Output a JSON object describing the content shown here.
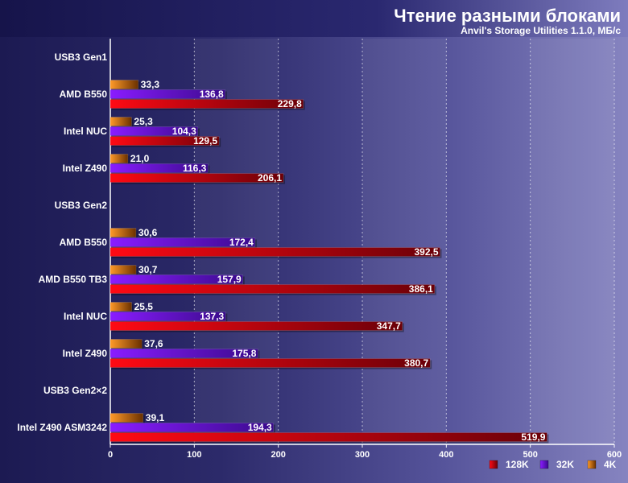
{
  "chart_data": {
    "type": "bar",
    "orientation": "horizontal",
    "title": "Чтение разными блоками",
    "subtitle": "Anvil's Storage Utilities 1.1.0, МБ/с",
    "xlim": [
      0,
      600
    ],
    "xticks": [
      "0",
      "100",
      "200",
      "300",
      "400",
      "500",
      "600"
    ],
    "grid": true,
    "legend_position": "bottom-right",
    "series": [
      {
        "name": "128K",
        "color": "#cc0010"
      },
      {
        "name": "32K",
        "color": "#6a10d8"
      },
      {
        "name": "4K",
        "color": "#d8761c"
      }
    ],
    "rows": [
      {
        "label": "USB3 Gen1",
        "group_header": true
      },
      {
        "label": "AMD B550",
        "values": [
          229.8,
          136.8,
          33.3
        ],
        "texts": [
          "229,8",
          "136,8",
          "33,3"
        ]
      },
      {
        "label": "Intel NUC",
        "values": [
          129.5,
          104.3,
          25.3
        ],
        "texts": [
          "129,5",
          "104,3",
          "25,3"
        ]
      },
      {
        "label": "Intel Z490",
        "values": [
          206.1,
          116.3,
          21.0
        ],
        "texts": [
          "206,1",
          "116,3",
          "21,0"
        ]
      },
      {
        "label": "USB3 Gen2",
        "group_header": true
      },
      {
        "label": "AMD B550",
        "values": [
          392.5,
          172.4,
          30.6
        ],
        "texts": [
          "392,5",
          "172,4",
          "30,6"
        ]
      },
      {
        "label": "AMD B550 TB3",
        "values": [
          386.1,
          157.9,
          30.7
        ],
        "texts": [
          "386,1",
          "157,9",
          "30,7"
        ]
      },
      {
        "label": "Intel NUC",
        "values": [
          347.7,
          137.3,
          25.5
        ],
        "texts": [
          "347,7",
          "137,3",
          "25,5"
        ]
      },
      {
        "label": "Intel Z490",
        "values": [
          380.7,
          175.8,
          37.6
        ],
        "texts": [
          "380,7",
          "175,8",
          "37,6"
        ]
      },
      {
        "label": "USB3 Gen2×2",
        "group_header": true
      },
      {
        "label": "Intel Z490 ASM3242",
        "values": [
          519.9,
          194.3,
          39.1
        ],
        "texts": [
          "519,9",
          "194,3",
          "39,1"
        ]
      }
    ]
  }
}
